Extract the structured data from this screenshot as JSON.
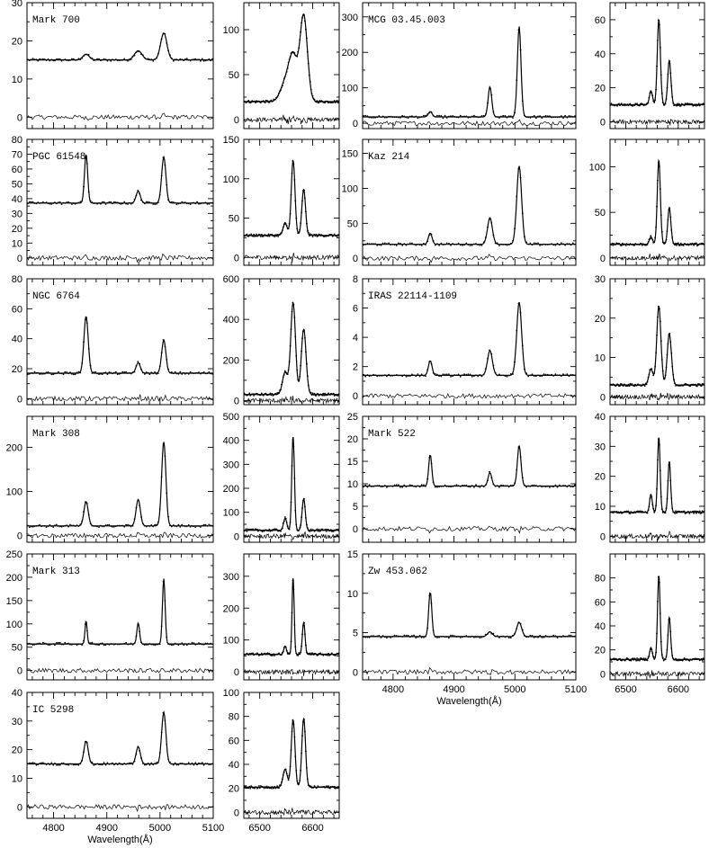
{
  "chart_data": [
    {
      "type": "line",
      "panel": "optical",
      "name": "Mark 700",
      "ytop": 30,
      "yticks": [
        0,
        10,
        20,
        30
      ],
      "xticks": [
        4800,
        4900,
        5000,
        5100
      ],
      "xlim": [
        4750,
        5100
      ],
      "ylim": [
        -3,
        30
      ],
      "continuum": 15,
      "residual_offset": 0,
      "lines": [
        {
          "x": 4861,
          "amp": 1.5,
          "w": 6
        },
        {
          "x": 4959,
          "amp": 2.4,
          "w": 7
        },
        {
          "x": 5007,
          "amp": 7,
          "w": 6
        }
      ],
      "xlabel": ""
    },
    {
      "type": "line",
      "panel": "halpha",
      "name": "",
      "ytop": 130,
      "yticks": [
        0,
        50,
        100
      ],
      "xticks": [
        6500,
        6600
      ],
      "xlim": [
        6470,
        6650
      ],
      "ylim": [
        -10,
        130
      ],
      "continuum": 20,
      "residual_offset": 0,
      "lines": [
        {
          "x": 6548,
          "amp": 20,
          "w": 9
        },
        {
          "x": 6563,
          "amp": 48,
          "w": 8
        },
        {
          "x": 6583,
          "amp": 95,
          "w": 7
        }
      ],
      "xlabel": ""
    },
    {
      "type": "line",
      "panel": "optical",
      "name": "MCG 03.45.003",
      "ytop": 340,
      "yticks": [
        0,
        100,
        200,
        300
      ],
      "xticks": [
        4800,
        4900,
        5000,
        5100
      ],
      "xlim": [
        4750,
        5100
      ],
      "ylim": [
        -15,
        340
      ],
      "continuum": 18,
      "residual_offset": 0,
      "lines": [
        {
          "x": 4861,
          "amp": 15,
          "w": 3
        },
        {
          "x": 4959,
          "amp": 85,
          "w": 3
        },
        {
          "x": 5007,
          "amp": 255,
          "w": 3
        }
      ],
      "xlabel": ""
    },
    {
      "type": "line",
      "panel": "halpha",
      "name": "",
      "ytop": 70,
      "yticks": [
        0,
        20,
        40,
        60
      ],
      "xticks": [
        6500,
        6600
      ],
      "xlim": [
        6470,
        6650
      ],
      "ylim": [
        -4,
        70
      ],
      "continuum": 10,
      "residual_offset": 0,
      "lines": [
        {
          "x": 6548,
          "amp": 8,
          "w": 3
        },
        {
          "x": 6563,
          "amp": 50,
          "w": 3
        },
        {
          "x": 6583,
          "amp": 26,
          "w": 3
        }
      ],
      "xlabel": ""
    },
    {
      "type": "line",
      "panel": "optical",
      "name": "PGC 61548",
      "ytop": 80,
      "yticks": [
        0,
        10,
        20,
        30,
        40,
        50,
        60,
        70,
        80
      ],
      "xticks": [
        4800,
        4900,
        5000,
        5100
      ],
      "xlim": [
        4750,
        5100
      ],
      "ylim": [
        -5,
        80
      ],
      "continuum": 37,
      "residual_offset": 0,
      "lines": [
        {
          "x": 4861,
          "amp": 33,
          "w": 3
        },
        {
          "x": 4959,
          "amp": 8,
          "w": 4
        },
        {
          "x": 5007,
          "amp": 31,
          "w": 4
        }
      ],
      "xlabel": ""
    },
    {
      "type": "line",
      "panel": "halpha",
      "name": "",
      "ytop": 150,
      "yticks": [
        0,
        50,
        100,
        150
      ],
      "xticks": [
        6500,
        6600
      ],
      "xlim": [
        6470,
        6650
      ],
      "ylim": [
        -10,
        150
      ],
      "continuum": 28,
      "residual_offset": 0,
      "lines": [
        {
          "x": 6548,
          "amp": 15,
          "w": 4
        },
        {
          "x": 6563,
          "amp": 95,
          "w": 3.5
        },
        {
          "x": 6583,
          "amp": 58,
          "w": 3.5
        }
      ],
      "xlabel": ""
    },
    {
      "type": "line",
      "panel": "optical",
      "name": "Kaz 214",
      "ytop": 170,
      "yticks": [
        0,
        50,
        100,
        150
      ],
      "xticks": [
        4800,
        4900,
        5000,
        5100
      ],
      "xlim": [
        4750,
        5100
      ],
      "ylim": [
        -10,
        170
      ],
      "continuum": 20,
      "residual_offset": 0,
      "lines": [
        {
          "x": 4861,
          "amp": 16,
          "w": 3
        },
        {
          "x": 4959,
          "amp": 38,
          "w": 4
        },
        {
          "x": 5007,
          "amp": 112,
          "w": 4
        }
      ],
      "xlabel": ""
    },
    {
      "type": "line",
      "panel": "halpha",
      "name": "",
      "ytop": 130,
      "yticks": [
        0,
        50,
        100
      ],
      "xticks": [
        6500,
        6600
      ],
      "xlim": [
        6470,
        6650
      ],
      "ylim": [
        -8,
        130
      ],
      "continuum": 15,
      "residual_offset": 0,
      "lines": [
        {
          "x": 6548,
          "amp": 8,
          "w": 3
        },
        {
          "x": 6563,
          "amp": 92,
          "w": 3
        },
        {
          "x": 6583,
          "amp": 40,
          "w": 3
        }
      ],
      "xlabel": ""
    },
    {
      "type": "line",
      "panel": "optical",
      "name": "NGC 6764",
      "ytop": 80,
      "yticks": [
        0,
        20,
        40,
        60,
        80
      ],
      "xticks": [
        4800,
        4900,
        5000,
        5100
      ],
      "xlim": [
        4750,
        5100
      ],
      "ylim": [
        -4,
        80
      ],
      "continuum": 17,
      "residual_offset": 0,
      "lines": [
        {
          "x": 4861,
          "amp": 38,
          "w": 4
        },
        {
          "x": 4959,
          "amp": 7,
          "w": 4
        },
        {
          "x": 5007,
          "amp": 22,
          "w": 4
        }
      ],
      "xlabel": ""
    },
    {
      "type": "line",
      "panel": "halpha",
      "name": "",
      "ytop": 600,
      "yticks": [
        0,
        200,
        400,
        600
      ],
      "xticks": [
        6500,
        6600
      ],
      "xlim": [
        6470,
        6650
      ],
      "ylim": [
        -20,
        600
      ],
      "continuum": 30,
      "residual_offset": 0,
      "lines": [
        {
          "x": 6548,
          "amp": 110,
          "w": 5
        },
        {
          "x": 6563,
          "amp": 450,
          "w": 4.5
        },
        {
          "x": 6583,
          "amp": 320,
          "w": 4.5
        }
      ],
      "xlabel": ""
    },
    {
      "type": "line",
      "panel": "optical",
      "name": "IRAS 22114-1109",
      "ytop": 8,
      "yticks": [
        0,
        2,
        4,
        6,
        8
      ],
      "xticks": [
        4800,
        4900,
        5000,
        5100
      ],
      "xlim": [
        4750,
        5100
      ],
      "ylim": [
        -0.6,
        8
      ],
      "continuum": 1.4,
      "residual_offset": 0,
      "lines": [
        {
          "x": 4861,
          "amp": 1,
          "w": 3
        },
        {
          "x": 4959,
          "amp": 1.7,
          "w": 4
        },
        {
          "x": 5007,
          "amp": 5,
          "w": 4
        }
      ],
      "xlabel": ""
    },
    {
      "type": "line",
      "panel": "halpha",
      "name": "",
      "ytop": 30,
      "yticks": [
        0,
        10,
        20,
        30
      ],
      "xticks": [
        6500,
        6600
      ],
      "xlim": [
        6470,
        6650
      ],
      "ylim": [
        -2,
        30
      ],
      "continuum": 3,
      "residual_offset": 0,
      "lines": [
        {
          "x": 6548,
          "amp": 4,
          "w": 4
        },
        {
          "x": 6563,
          "amp": 20,
          "w": 4
        },
        {
          "x": 6583,
          "amp": 13,
          "w": 4
        }
      ],
      "xlabel": ""
    },
    {
      "type": "line",
      "panel": "optical",
      "name": "Mark 308",
      "ytop": 270,
      "yticks": [
        0,
        100,
        200
      ],
      "xticks": [
        4800,
        4900,
        5000,
        5100
      ],
      "xlim": [
        4750,
        5100
      ],
      "ylim": [
        -15,
        270
      ],
      "continuum": 22,
      "residual_offset": 0,
      "lines": [
        {
          "x": 4861,
          "amp": 55,
          "w": 4
        },
        {
          "x": 4959,
          "amp": 60,
          "w": 4
        },
        {
          "x": 5007,
          "amp": 190,
          "w": 4
        }
      ],
      "xlabel": ""
    },
    {
      "type": "line",
      "panel": "halpha",
      "name": "",
      "ytop": 500,
      "yticks": [
        0,
        100,
        200,
        300,
        400,
        500
      ],
      "xticks": [
        6500,
        6600
      ],
      "xlim": [
        6470,
        6650
      ],
      "ylim": [
        -25,
        500
      ],
      "continuum": 25,
      "residual_offset": 0,
      "lines": [
        {
          "x": 6548,
          "amp": 50,
          "w": 3
        },
        {
          "x": 6563,
          "amp": 390,
          "w": 2.5
        },
        {
          "x": 6583,
          "amp": 130,
          "w": 3
        }
      ],
      "xlabel": ""
    },
    {
      "type": "line",
      "panel": "optical",
      "name": "Mark 522",
      "ytop": 25,
      "yticks": [
        0,
        5,
        10,
        15,
        20,
        25
      ],
      "xticks": [
        4800,
        4900,
        5000,
        5100
      ],
      "xlim": [
        4750,
        5100
      ],
      "ylim": [
        -3,
        25
      ],
      "continuum": 9.5,
      "residual_offset": 0,
      "lines": [
        {
          "x": 4861,
          "amp": 7,
          "w": 2.5
        },
        {
          "x": 4959,
          "amp": 3,
          "w": 3
        },
        {
          "x": 5007,
          "amp": 9,
          "w": 3
        }
      ],
      "xlabel": ""
    },
    {
      "type": "line",
      "panel": "halpha",
      "name": "",
      "ytop": 40,
      "yticks": [
        0,
        10,
        20,
        30,
        40
      ],
      "xticks": [
        6500,
        6600
      ],
      "xlim": [
        6470,
        6650
      ],
      "ylim": [
        -2,
        40
      ],
      "continuum": 8,
      "residual_offset": 0,
      "lines": [
        {
          "x": 6548,
          "amp": 6,
          "w": 2.5
        },
        {
          "x": 6563,
          "amp": 25,
          "w": 2.5
        },
        {
          "x": 6583,
          "amp": 17,
          "w": 2.5
        }
      ],
      "xlabel": ""
    },
    {
      "type": "line",
      "panel": "optical",
      "name": "Mark 313",
      "ytop": 250,
      "yticks": [
        0,
        50,
        100,
        150,
        200,
        250
      ],
      "xticks": [
        4800,
        4900,
        5000,
        5100
      ],
      "xlim": [
        4750,
        5100
      ],
      "ylim": [
        -20,
        250
      ],
      "continuum": 57,
      "residual_offset": 0,
      "lines": [
        {
          "x": 4861,
          "amp": 50,
          "w": 2
        },
        {
          "x": 4959,
          "amp": 45,
          "w": 2.5
        },
        {
          "x": 5007,
          "amp": 140,
          "w": 2.5
        }
      ],
      "xlabel": ""
    },
    {
      "type": "line",
      "panel": "halpha",
      "name": "",
      "ytop": 370,
      "yticks": [
        0,
        100,
        200,
        300
      ],
      "xticks": [
        6500,
        6600
      ],
      "xlim": [
        6470,
        6650
      ],
      "ylim": [
        -25,
        370
      ],
      "continuum": 55,
      "residual_offset": 0,
      "lines": [
        {
          "x": 6548,
          "amp": 25,
          "w": 2.5
        },
        {
          "x": 6563,
          "amp": 240,
          "w": 2
        },
        {
          "x": 6583,
          "amp": 100,
          "w": 2.5
        }
      ],
      "xlabel": ""
    },
    {
      "type": "line",
      "panel": "optical",
      "name": "Zw 453.062",
      "ytop": 15,
      "yticks": [
        0,
        5,
        10,
        15
      ],
      "xticks": [
        4800,
        4900,
        5000,
        5100
      ],
      "xlim": [
        4750,
        5100
      ],
      "ylim": [
        -1,
        15
      ],
      "continuum": 4.5,
      "residual_offset": 0,
      "lines": [
        {
          "x": 4861,
          "amp": 5.7,
          "w": 2.5
        },
        {
          "x": 4959,
          "amp": 0.6,
          "w": 4
        },
        {
          "x": 5007,
          "amp": 1.8,
          "w": 4
        }
      ],
      "xlabel": "Wavelength(Å)"
    },
    {
      "type": "line",
      "panel": "halpha",
      "name": "",
      "ytop": 100,
      "yticks": [
        0,
        20,
        40,
        60,
        80
      ],
      "xticks": [
        6500,
        6600
      ],
      "xlim": [
        6470,
        6650
      ],
      "ylim": [
        -5,
        100
      ],
      "continuum": 12,
      "residual_offset": 0,
      "lines": [
        {
          "x": 6548,
          "amp": 10,
          "w": 2.5
        },
        {
          "x": 6563,
          "amp": 70,
          "w": 2.5
        },
        {
          "x": 6583,
          "amp": 35,
          "w": 2.5
        }
      ],
      "xlabel": ""
    },
    {
      "type": "line",
      "panel": "optical",
      "name": "IC 5298",
      "ytop": 40,
      "yticks": [
        0,
        10,
        20,
        30,
        40
      ],
      "xticks": [
        4800,
        4900,
        5000,
        5100
      ],
      "xlim": [
        4750,
        5100
      ],
      "ylim": [
        -4,
        40
      ],
      "continuum": 15,
      "residual_offset": 0,
      "lines": [
        {
          "x": 4861,
          "amp": 8,
          "w": 4
        },
        {
          "x": 4959,
          "amp": 6,
          "w": 4
        },
        {
          "x": 5007,
          "amp": 18,
          "w": 4
        }
      ],
      "xlabel": "Wavelength(Å)"
    },
    {
      "type": "line",
      "panel": "halpha",
      "name": "",
      "ytop": 100,
      "yticks": [
        0,
        20,
        40,
        60,
        80,
        100
      ],
      "xticks": [
        6500,
        6600
      ],
      "xlim": [
        6470,
        6650
      ],
      "ylim": [
        -5,
        100
      ],
      "continuum": 21,
      "residual_offset": 0,
      "lines": [
        {
          "x": 6548,
          "amp": 15,
          "w": 4
        },
        {
          "x": 6563,
          "amp": 56,
          "w": 3.5
        },
        {
          "x": 6583,
          "amp": 57,
          "w": 3.5
        }
      ],
      "xlabel": ""
    }
  ],
  "tick_labels_optical": [
    "4800",
    "4900",
    "5000",
    "5100"
  ],
  "tick_labels_halpha": [
    "6500",
    "6600"
  ]
}
